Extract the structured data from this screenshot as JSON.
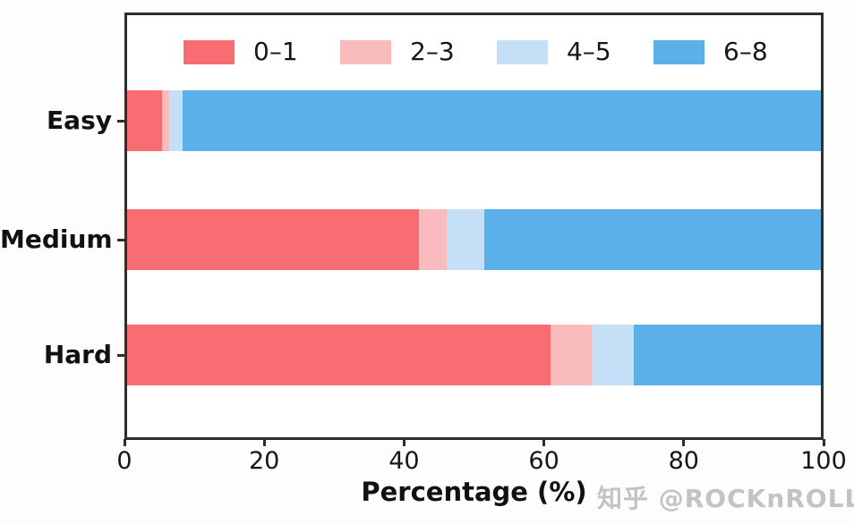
{
  "chart_data": {
    "type": "bar",
    "orientation": "horizontal",
    "stacked": true,
    "title": "",
    "xlabel": "Percentage (%)",
    "ylabel": "",
    "xlim": [
      0,
      100
    ],
    "xticks": [
      "0",
      "20",
      "40",
      "60",
      "80",
      "100"
    ],
    "grid": false,
    "legend_position": "top-inside",
    "categories": [
      "Easy",
      "Medium",
      "Hard"
    ],
    "series": [
      {
        "name": "0–1",
        "color": "#F76D72",
        "values": [
          5,
          42,
          61
        ]
      },
      {
        "name": "2–3",
        "color": "#FABBBE",
        "values": [
          1,
          4,
          6
        ]
      },
      {
        "name": "4–5",
        "color": "#C5DFF7",
        "values": [
          2,
          5.5,
          6
        ]
      },
      {
        "name": "6–8",
        "color": "#5BB0EA",
        "values": [
          92,
          48.5,
          27
        ]
      }
    ]
  },
  "frame_color": "#2e2e2e",
  "watermark": "知乎 @ROCKnROLL"
}
